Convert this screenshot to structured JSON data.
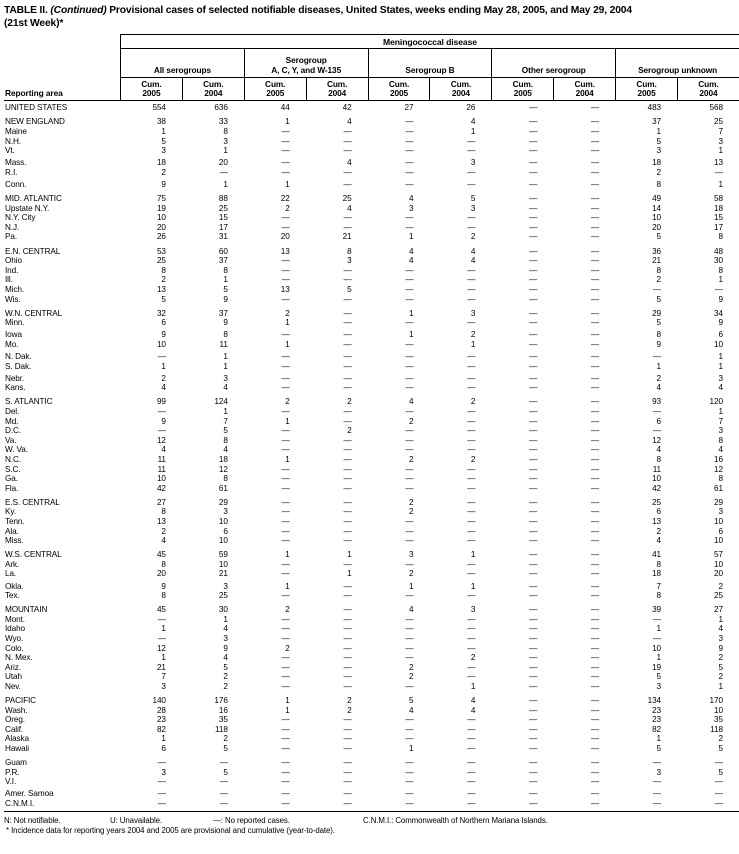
{
  "title": {
    "table_label": "TABLE II.",
    "continued": "(Continued)",
    "text": "Provisional cases of selected notifiable diseases, United States, weeks ending May 28, 2005, and May 29, 2004",
    "week_line": "(21st Week)*"
  },
  "table": {
    "disease_header": "Meningococcal disease",
    "reporting_area_label": "Reporting area",
    "serogroup_headers": [
      "All serogroups",
      "Serogroup\nA, C, Y, and W-135",
      "Serogroup B",
      "Other serogroup",
      "Serogroup unknown"
    ],
    "column_headers": [
      "Cum.\n2005",
      "Cum.\n2004",
      "Cum.\n2005",
      "Cum.\n2004",
      "Cum.\n2005",
      "Cum.\n2004",
      "Cum.\n2005",
      "Cum.\n2004",
      "Cum.\n2005",
      "Cum.\n2004"
    ],
    "no_cases_symbol": "—",
    "rows": [
      {
        "area": "UNITED STATES",
        "type": "total",
        "gap": "none",
        "values": [
          "554",
          "636",
          "44",
          "42",
          "27",
          "26",
          "—",
          "—",
          "483",
          "568"
        ]
      },
      {
        "area": "NEW ENGLAND",
        "type": "region",
        "gap": "block",
        "values": [
          "38",
          "33",
          "1",
          "4",
          "—",
          "4",
          "—",
          "—",
          "37",
          "25"
        ]
      },
      {
        "area": "Maine",
        "type": "state",
        "gap": "none",
        "values": [
          "1",
          "8",
          "—",
          "—",
          "—",
          "1",
          "—",
          "—",
          "1",
          "7"
        ]
      },
      {
        "area": "N.H.",
        "type": "state",
        "gap": "none",
        "values": [
          "5",
          "3",
          "—",
          "—",
          "—",
          "—",
          "—",
          "—",
          "5",
          "3"
        ]
      },
      {
        "area": "Vt.",
        "type": "state",
        "gap": "none",
        "values": [
          "3",
          "1",
          "—",
          "—",
          "—",
          "—",
          "—",
          "—",
          "3",
          "1"
        ]
      },
      {
        "area": "Mass.",
        "type": "state",
        "gap": "small",
        "values": [
          "18",
          "20",
          "—",
          "4",
          "—",
          "3",
          "—",
          "—",
          "18",
          "13"
        ]
      },
      {
        "area": "R.I.",
        "type": "state",
        "gap": "none",
        "values": [
          "2",
          "—",
          "—",
          "—",
          "—",
          "—",
          "—",
          "—",
          "2",
          "—"
        ]
      },
      {
        "area": "Conn.",
        "type": "state",
        "gap": "small",
        "values": [
          "9",
          "1",
          "1",
          "—",
          "—",
          "—",
          "—",
          "—",
          "8",
          "1"
        ]
      },
      {
        "area": "MID. ATLANTIC",
        "type": "region",
        "gap": "block",
        "values": [
          "75",
          "88",
          "22",
          "25",
          "4",
          "5",
          "—",
          "—",
          "49",
          "58"
        ]
      },
      {
        "area": "Upstate N.Y.",
        "type": "state",
        "gap": "none",
        "values": [
          "19",
          "25",
          "2",
          "4",
          "3",
          "3",
          "—",
          "—",
          "14",
          "18"
        ]
      },
      {
        "area": "N.Y. City",
        "type": "state",
        "gap": "none",
        "values": [
          "10",
          "15",
          "—",
          "—",
          "—",
          "—",
          "—",
          "—",
          "10",
          "15"
        ]
      },
      {
        "area": "N.J.",
        "type": "state",
        "gap": "none",
        "values": [
          "20",
          "17",
          "—",
          "—",
          "—",
          "—",
          "—",
          "—",
          "20",
          "17"
        ]
      },
      {
        "area": "Pa.",
        "type": "state",
        "gap": "none",
        "values": [
          "26",
          "31",
          "20",
          "21",
          "1",
          "2",
          "—",
          "—",
          "5",
          "8"
        ]
      },
      {
        "area": "E.N. CENTRAL",
        "type": "region",
        "gap": "block",
        "values": [
          "53",
          "60",
          "13",
          "8",
          "4",
          "4",
          "—",
          "—",
          "36",
          "48"
        ]
      },
      {
        "area": "Ohio",
        "type": "state",
        "gap": "none",
        "values": [
          "25",
          "37",
          "—",
          "3",
          "4",
          "4",
          "—",
          "—",
          "21",
          "30"
        ]
      },
      {
        "area": "Ind.",
        "type": "state",
        "gap": "none",
        "values": [
          "8",
          "8",
          "—",
          "—",
          "—",
          "—",
          "—",
          "—",
          "8",
          "8"
        ]
      },
      {
        "area": "Ill.",
        "type": "state",
        "gap": "none",
        "values": [
          "2",
          "1",
          "—",
          "—",
          "—",
          "—",
          "—",
          "—",
          "2",
          "1"
        ]
      },
      {
        "area": "Mich.",
        "type": "state",
        "gap": "none",
        "values": [
          "13",
          "5",
          "13",
          "5",
          "—",
          "—",
          "—",
          "—",
          "—",
          "—"
        ]
      },
      {
        "area": "Wis.",
        "type": "state",
        "gap": "none",
        "values": [
          "5",
          "9",
          "—",
          "—",
          "—",
          "—",
          "—",
          "—",
          "5",
          "9"
        ]
      },
      {
        "area": "W.N. CENTRAL",
        "type": "region",
        "gap": "block",
        "values": [
          "32",
          "37",
          "2",
          "—",
          "1",
          "3",
          "—",
          "—",
          "29",
          "34"
        ]
      },
      {
        "area": "Minn.",
        "type": "state",
        "gap": "none",
        "values": [
          "6",
          "9",
          "1",
          "—",
          "—",
          "—",
          "—",
          "—",
          "5",
          "9"
        ]
      },
      {
        "area": "Iowa",
        "type": "state",
        "gap": "small",
        "values": [
          "9",
          "8",
          "—",
          "—",
          "1",
          "2",
          "—",
          "—",
          "8",
          "6"
        ]
      },
      {
        "area": "Mo.",
        "type": "state",
        "gap": "none",
        "values": [
          "10",
          "11",
          "1",
          "—",
          "—",
          "1",
          "—",
          "—",
          "9",
          "10"
        ]
      },
      {
        "area": "N. Dak.",
        "type": "state",
        "gap": "small",
        "values": [
          "—",
          "1",
          "—",
          "—",
          "—",
          "—",
          "—",
          "—",
          "—",
          "1"
        ]
      },
      {
        "area": "S. Dak.",
        "type": "state",
        "gap": "none",
        "values": [
          "1",
          "1",
          "—",
          "—",
          "—",
          "—",
          "—",
          "—",
          "1",
          "1"
        ]
      },
      {
        "area": "Nebr.",
        "type": "state",
        "gap": "small",
        "values": [
          "2",
          "3",
          "—",
          "—",
          "—",
          "—",
          "—",
          "—",
          "2",
          "3"
        ]
      },
      {
        "area": "Kans.",
        "type": "state",
        "gap": "none",
        "values": [
          "4",
          "4",
          "—",
          "—",
          "—",
          "—",
          "—",
          "—",
          "4",
          "4"
        ]
      },
      {
        "area": "S. ATLANTIC",
        "type": "region",
        "gap": "block",
        "values": [
          "99",
          "124",
          "2",
          "2",
          "4",
          "2",
          "—",
          "—",
          "93",
          "120"
        ]
      },
      {
        "area": "Del.",
        "type": "state",
        "gap": "none",
        "values": [
          "—",
          "1",
          "—",
          "—",
          "—",
          "—",
          "—",
          "—",
          "—",
          "1"
        ]
      },
      {
        "area": "Md.",
        "type": "state",
        "gap": "none",
        "values": [
          "9",
          "7",
          "1",
          "—",
          "2",
          "—",
          "—",
          "—",
          "6",
          "7"
        ]
      },
      {
        "area": "D.C.",
        "type": "state",
        "gap": "none",
        "values": [
          "—",
          "5",
          "—",
          "2",
          "—",
          "—",
          "—",
          "—",
          "—",
          "3"
        ]
      },
      {
        "area": "Va.",
        "type": "state",
        "gap": "none",
        "values": [
          "12",
          "8",
          "—",
          "—",
          "—",
          "—",
          "—",
          "—",
          "12",
          "8"
        ]
      },
      {
        "area": "W. Va.",
        "type": "state",
        "gap": "none",
        "values": [
          "4",
          "4",
          "—",
          "—",
          "—",
          "—",
          "—",
          "—",
          "4",
          "4"
        ]
      },
      {
        "area": "N.C.",
        "type": "state",
        "gap": "none",
        "values": [
          "11",
          "18",
          "1",
          "—",
          "2",
          "2",
          "—",
          "—",
          "8",
          "16"
        ]
      },
      {
        "area": "S.C.",
        "type": "state",
        "gap": "none",
        "values": [
          "11",
          "12",
          "—",
          "—",
          "—",
          "—",
          "—",
          "—",
          "11",
          "12"
        ]
      },
      {
        "area": "Ga.",
        "type": "state",
        "gap": "none",
        "values": [
          "10",
          "8",
          "—",
          "—",
          "—",
          "—",
          "—",
          "—",
          "10",
          "8"
        ]
      },
      {
        "area": "Fla.",
        "type": "state",
        "gap": "none",
        "values": [
          "42",
          "61",
          "—",
          "—",
          "—",
          "—",
          "—",
          "—",
          "42",
          "61"
        ]
      },
      {
        "area": "E.S. CENTRAL",
        "type": "region",
        "gap": "block",
        "values": [
          "27",
          "29",
          "—",
          "—",
          "2",
          "—",
          "—",
          "—",
          "25",
          "29"
        ]
      },
      {
        "area": "Ky.",
        "type": "state",
        "gap": "none",
        "values": [
          "8",
          "3",
          "—",
          "—",
          "2",
          "—",
          "—",
          "—",
          "6",
          "3"
        ]
      },
      {
        "area": "Tenn.",
        "type": "state",
        "gap": "none",
        "values": [
          "13",
          "10",
          "—",
          "—",
          "—",
          "—",
          "—",
          "—",
          "13",
          "10"
        ]
      },
      {
        "area": "Ala.",
        "type": "state",
        "gap": "none",
        "values": [
          "2",
          "6",
          "—",
          "—",
          "—",
          "—",
          "—",
          "—",
          "2",
          "6"
        ]
      },
      {
        "area": "Miss.",
        "type": "state",
        "gap": "none",
        "values": [
          "4",
          "10",
          "—",
          "—",
          "—",
          "—",
          "—",
          "—",
          "4",
          "10"
        ]
      },
      {
        "area": "W.S. CENTRAL",
        "type": "region",
        "gap": "block",
        "values": [
          "45",
          "59",
          "1",
          "1",
          "3",
          "1",
          "—",
          "—",
          "41",
          "57"
        ]
      },
      {
        "area": "Ark.",
        "type": "state",
        "gap": "none",
        "values": [
          "8",
          "10",
          "—",
          "—",
          "—",
          "—",
          "—",
          "—",
          "8",
          "10"
        ]
      },
      {
        "area": "La.",
        "type": "state",
        "gap": "none",
        "values": [
          "20",
          "21",
          "—",
          "1",
          "2",
          "—",
          "—",
          "—",
          "18",
          "20"
        ]
      },
      {
        "area": "Okla.",
        "type": "state",
        "gap": "small",
        "values": [
          "9",
          "3",
          "1",
          "—",
          "1",
          "1",
          "—",
          "—",
          "7",
          "2"
        ]
      },
      {
        "area": "Tex.",
        "type": "state",
        "gap": "none",
        "values": [
          "8",
          "25",
          "—",
          "—",
          "—",
          "—",
          "—",
          "—",
          "8",
          "25"
        ]
      },
      {
        "area": "MOUNTAIN",
        "type": "region",
        "gap": "block",
        "values": [
          "45",
          "30",
          "2",
          "—",
          "4",
          "3",
          "—",
          "—",
          "39",
          "27"
        ]
      },
      {
        "area": "Mont.",
        "type": "state",
        "gap": "none",
        "values": [
          "—",
          "1",
          "—",
          "—",
          "—",
          "—",
          "—",
          "—",
          "—",
          "1"
        ]
      },
      {
        "area": "Idaho",
        "type": "state",
        "gap": "none",
        "values": [
          "1",
          "4",
          "—",
          "—",
          "—",
          "—",
          "—",
          "—",
          "1",
          "4"
        ]
      },
      {
        "area": "Wyo.",
        "type": "state",
        "gap": "none",
        "values": [
          "—",
          "3",
          "—",
          "—",
          "—",
          "—",
          "—",
          "—",
          "—",
          "3"
        ]
      },
      {
        "area": "Colo.",
        "type": "state",
        "gap": "none",
        "values": [
          "12",
          "9",
          "2",
          "—",
          "—",
          "—",
          "—",
          "—",
          "10",
          "9"
        ]
      },
      {
        "area": "N. Mex.",
        "type": "state",
        "gap": "none",
        "values": [
          "1",
          "4",
          "—",
          "—",
          "—",
          "2",
          "—",
          "—",
          "1",
          "2"
        ]
      },
      {
        "area": "Ariz.",
        "type": "state",
        "gap": "none",
        "values": [
          "21",
          "5",
          "—",
          "—",
          "2",
          "—",
          "—",
          "—",
          "19",
          "5"
        ]
      },
      {
        "area": "Utah",
        "type": "state",
        "gap": "none",
        "values": [
          "7",
          "2",
          "—",
          "—",
          "2",
          "—",
          "—",
          "—",
          "5",
          "2"
        ]
      },
      {
        "area": "Nev.",
        "type": "state",
        "gap": "none",
        "values": [
          "3",
          "2",
          "—",
          "—",
          "—",
          "1",
          "—",
          "—",
          "3",
          "1"
        ]
      },
      {
        "area": "PACIFIC",
        "type": "region",
        "gap": "block",
        "values": [
          "140",
          "176",
          "1",
          "2",
          "5",
          "4",
          "—",
          "—",
          "134",
          "170"
        ]
      },
      {
        "area": "Wash.",
        "type": "state",
        "gap": "none",
        "values": [
          "28",
          "16",
          "1",
          "2",
          "4",
          "4",
          "—",
          "—",
          "23",
          "10"
        ]
      },
      {
        "area": "Oreg.",
        "type": "state",
        "gap": "none",
        "values": [
          "23",
          "35",
          "—",
          "—",
          "—",
          "—",
          "—",
          "—",
          "23",
          "35"
        ]
      },
      {
        "area": "Calif.",
        "type": "state",
        "gap": "none",
        "values": [
          "82",
          "118",
          "—",
          "—",
          "—",
          "—",
          "—",
          "—",
          "82",
          "118"
        ]
      },
      {
        "area": "Alaska",
        "type": "state",
        "gap": "none",
        "values": [
          "1",
          "2",
          "—",
          "—",
          "—",
          "—",
          "—",
          "—",
          "1",
          "2"
        ]
      },
      {
        "area": "Hawaii",
        "type": "state",
        "gap": "none",
        "values": [
          "6",
          "5",
          "—",
          "—",
          "1",
          "—",
          "—",
          "—",
          "5",
          "5"
        ]
      },
      {
        "area": "Guam",
        "type": "territory",
        "gap": "block",
        "values": [
          "—",
          "—",
          "—",
          "—",
          "—",
          "—",
          "—",
          "—",
          "—",
          "—"
        ]
      },
      {
        "area": "P.R.",
        "type": "territory",
        "gap": "none",
        "values": [
          "3",
          "5",
          "—",
          "—",
          "—",
          "—",
          "—",
          "—",
          "3",
          "5"
        ]
      },
      {
        "area": "V.I.",
        "type": "territory",
        "gap": "none",
        "values": [
          "—",
          "—",
          "—",
          "—",
          "—",
          "—",
          "—",
          "—",
          "—",
          "—"
        ]
      },
      {
        "area": "Amer. Samoa",
        "type": "territory",
        "gap": "small",
        "values": [
          "—",
          "—",
          "—",
          "—",
          "—",
          "—",
          "—",
          "—",
          "—",
          "—"
        ]
      },
      {
        "area": "C.N.M.I.",
        "type": "territory",
        "gap": "none",
        "values": [
          "—",
          "—",
          "—",
          "—",
          "—",
          "—",
          "—",
          "—",
          "—",
          "—"
        ]
      }
    ]
  },
  "footnotes": {
    "legend": [
      "N: Not notifiable.",
      "U: Unavailable.",
      "—: No reported cases.",
      "C.N.M.I.: Commonwealth of Northern Mariana Islands."
    ],
    "note": "* Incidence data for reporting years 2004 and 2005 are provisional and cumulative (year-to-date)."
  }
}
